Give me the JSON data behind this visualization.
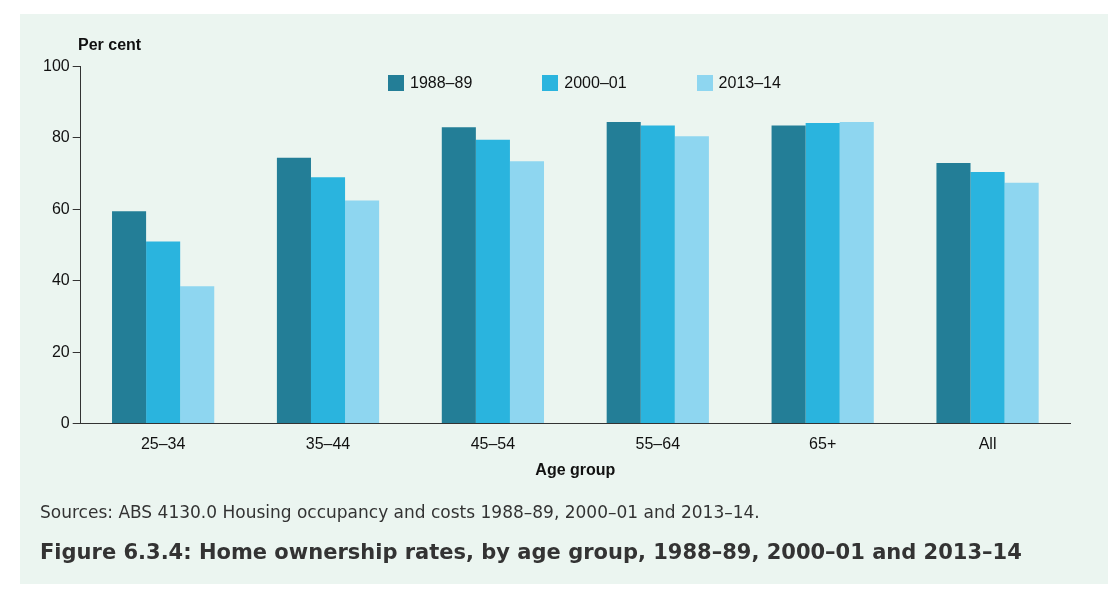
{
  "chart_data": {
    "type": "bar",
    "title": "Figure 6.3.4: Home ownership rates, by age group, 1988–89, 2000–01 and 2013–14",
    "xlabel": "Age group",
    "ylabel": "Per cent",
    "annotations": [
      "Sources: ABS 4130.0 Housing occupancy and costs 1988–89, 2000–01 and 2013–14."
    ],
    "categories": [
      "25–34",
      "35–44",
      "45–54",
      "55–64",
      "65+",
      "All"
    ],
    "series": [
      {
        "name": "1988–89",
        "color": "#237e97",
        "values": [
          59.5,
          74.5,
          83,
          84.5,
          83.5,
          73
        ]
      },
      {
        "name": "2000–01",
        "color": "#2ab4de",
        "values": [
          51,
          69,
          79.5,
          83.5,
          84.2,
          70.5
        ]
      },
      {
        "name": "2013–14",
        "color": "#8ed6f0",
        "values": [
          38.5,
          62.5,
          73.5,
          80.5,
          84.5,
          67.5
        ]
      }
    ],
    "ylim": [
      0,
      100
    ],
    "yticks": [
      0,
      20,
      40,
      60,
      80,
      100
    ],
    "grid": false,
    "legend": "top"
  }
}
